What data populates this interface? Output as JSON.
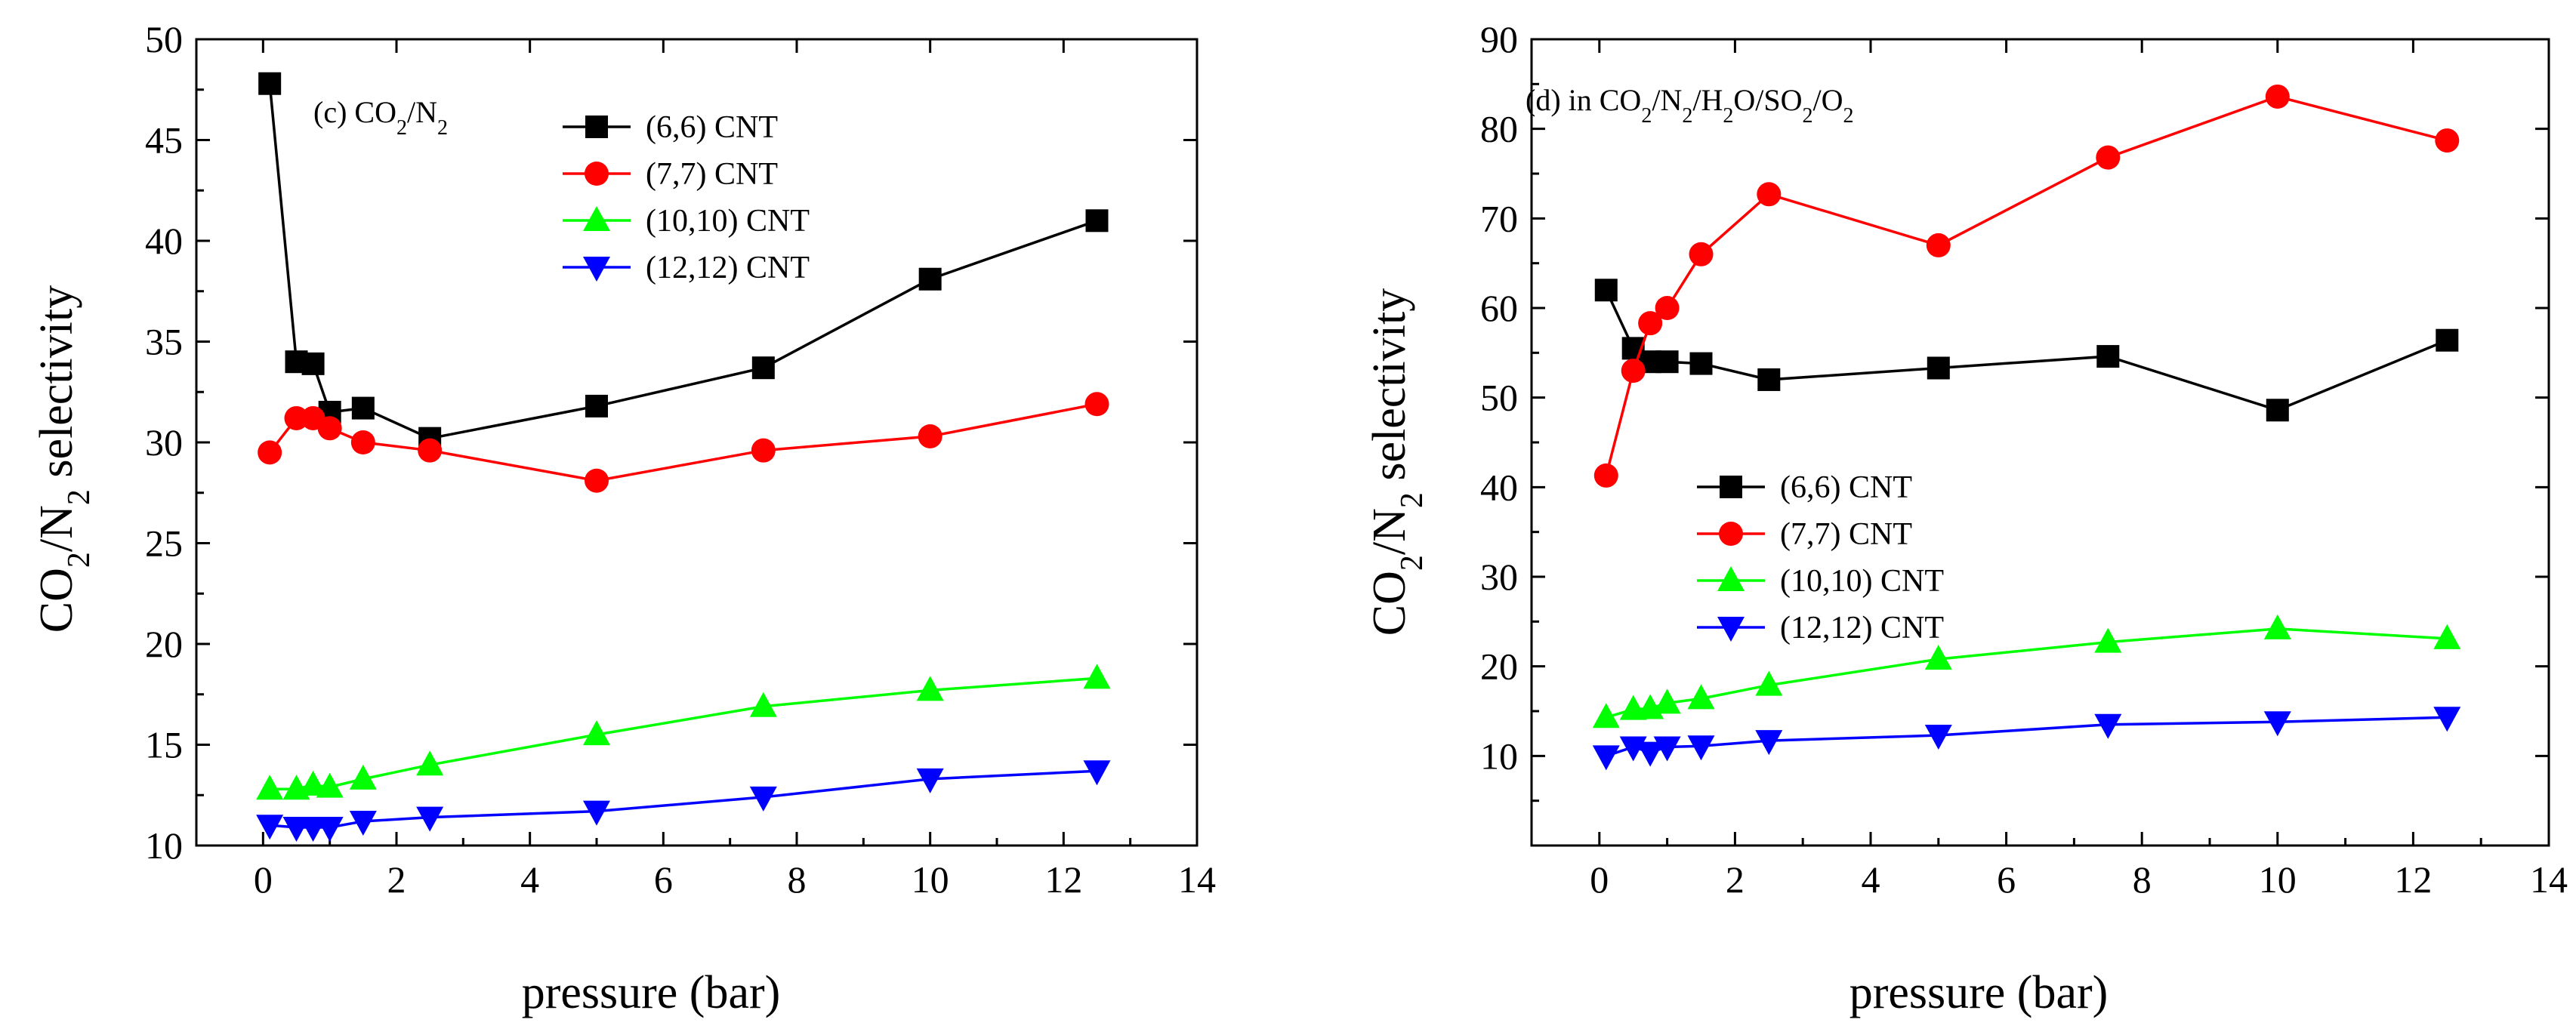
{
  "chart_data": [
    {
      "type": "line",
      "annotation": {
        "prefix": "(c) CO",
        "sub1": "2",
        "mid": "/N",
        "sub2": "2",
        "suffix": ""
      },
      "xlabel": "pressure (bar)",
      "ylabel": {
        "a": "CO",
        "b": "2",
        "c": "/N",
        "d": "2",
        "e": " selectivity"
      },
      "xlim": [
        -1,
        14
      ],
      "ylim": [
        10,
        50
      ],
      "xticks": [
        "0",
        "2",
        "4",
        "6",
        "8",
        "10",
        "12",
        "14"
      ],
      "yticks": [
        "10",
        "15",
        "20",
        "25",
        "30",
        "35",
        "40",
        "45",
        "50"
      ],
      "legend_position": "top-center",
      "x": [
        0.1,
        0.5,
        0.75,
        1,
        1.5,
        2.5,
        5,
        7.5,
        10,
        12.5
      ],
      "series": [
        {
          "name": "(6,6) CNT",
          "color": "#000000",
          "marker": "square",
          "values": [
            47.8,
            34.0,
            33.9,
            31.5,
            31.7,
            30.2,
            31.8,
            33.7,
            38.1,
            41.0
          ]
        },
        {
          "name": "(7,7) CNT",
          "color": "#ff0000",
          "marker": "circle",
          "values": [
            29.5,
            31.2,
            31.2,
            30.7,
            30.0,
            29.6,
            28.1,
            29.6,
            30.3,
            31.9
          ]
        },
        {
          "name": "(10,10) CNT",
          "color": "#00ff00",
          "marker": "triangle-up",
          "values": [
            12.8,
            12.8,
            13.0,
            12.9,
            13.3,
            14.0,
            15.5,
            16.9,
            17.7,
            18.3
          ]
        },
        {
          "name": "(12,12) CNT",
          "color": "#0000ff",
          "marker": "triangle-down",
          "values": [
            11.0,
            10.9,
            10.9,
            10.9,
            11.2,
            11.4,
            11.7,
            12.4,
            13.3,
            13.7
          ]
        }
      ]
    },
    {
      "type": "line",
      "annotation": {
        "prefix": "(d) in CO",
        "sub1": "2",
        "mid": "/N",
        "sub2": "2",
        "suffix": "/H2O/SO2/O2"
      },
      "annotation_parts": [
        {
          "t": "(d) in CO",
          "s": false
        },
        {
          "t": "2",
          "s": true
        },
        {
          "t": "/N",
          "s": false
        },
        {
          "t": "2",
          "s": true
        },
        {
          "t": "/H",
          "s": false
        },
        {
          "t": "2",
          "s": true
        },
        {
          "t": "O/SO",
          "s": false
        },
        {
          "t": "2",
          "s": true
        },
        {
          "t": "/O",
          "s": false
        },
        {
          "t": "2",
          "s": true
        }
      ],
      "xlabel": "pressure (bar)",
      "ylabel": {
        "a": "CO",
        "b": "2",
        "c": "/N",
        "d": "2",
        "e": " selectivity"
      },
      "xlim": [
        -1,
        14
      ],
      "ylim": [
        0,
        90
      ],
      "xticks": [
        "0",
        "2",
        "4",
        "6",
        "8",
        "10",
        "12",
        "14"
      ],
      "yticks": [
        "10",
        "20",
        "30",
        "40",
        "50",
        "60",
        "70",
        "80",
        "90"
      ],
      "legend_position": "center",
      "x": [
        0.1,
        0.5,
        0.75,
        1,
        1.5,
        2.5,
        5,
        7.5,
        10,
        12.5
      ],
      "series": [
        {
          "name": "(6,6) CNT",
          "color": "#000000",
          "marker": "square",
          "values": [
            62.0,
            55.5,
            54.0,
            54.0,
            53.8,
            52.0,
            53.3,
            54.6,
            48.6,
            56.4
          ]
        },
        {
          "name": "(7,7) CNT",
          "color": "#ff0000",
          "marker": "circle",
          "values": [
            41.3,
            53.0,
            58.3,
            60.0,
            66.0,
            72.7,
            67.0,
            76.8,
            83.6,
            78.7
          ]
        },
        {
          "name": "(10,10) CNT",
          "color": "#00ff00",
          "marker": "triangle-up",
          "values": [
            14.3,
            15.2,
            15.3,
            15.9,
            16.4,
            17.9,
            20.8,
            22.7,
            24.2,
            23.1
          ]
        },
        {
          "name": "(12,12) CNT",
          "color": "#0000ff",
          "marker": "triangle-down",
          "values": [
            10.0,
            11.0,
            10.4,
            11.0,
            11.1,
            11.7,
            12.3,
            13.5,
            13.8,
            14.3
          ]
        }
      ]
    }
  ]
}
